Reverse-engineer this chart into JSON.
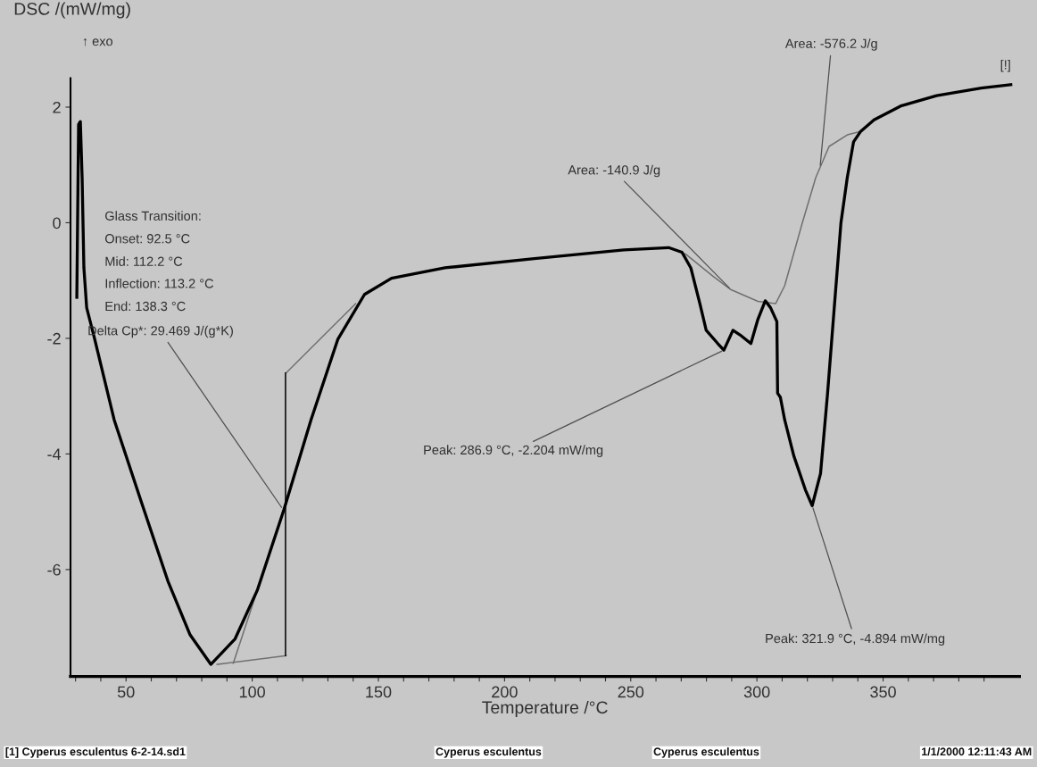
{
  "chart_data": {
    "type": "line",
    "xlabel": "Temperature /°C",
    "ylabel": "DSC /(mW/mg)",
    "xlim": [
      28,
      404
    ],
    "ylim": [
      -7.85,
      2.5
    ],
    "xticks": [
      {
        "value": 30,
        "label": null
      },
      {
        "value": 40,
        "label": null
      },
      50,
      {
        "value": 60,
        "label": null
      },
      {
        "value": 70,
        "label": null
      },
      {
        "value": 80,
        "label": null
      },
      {
        "value": 90,
        "label": null
      },
      100,
      {
        "value": 110,
        "label": null
      },
      {
        "value": 120,
        "label": null
      },
      {
        "value": 130,
        "label": null
      },
      {
        "value": 140,
        "label": null
      },
      150,
      {
        "value": 160,
        "label": null
      },
      {
        "value": 170,
        "label": null
      },
      {
        "value": 180,
        "label": null
      },
      {
        "value": 190,
        "label": null
      },
      200,
      {
        "value": 210,
        "label": null
      },
      {
        "value": 220,
        "label": null
      },
      {
        "value": 230,
        "label": null
      },
      {
        "value": 240,
        "label": null
      },
      250,
      {
        "value": 260,
        "label": null
      },
      {
        "value": 270,
        "label": null
      },
      {
        "value": 280,
        "label": null
      },
      {
        "value": 290,
        "label": null
      },
      300,
      {
        "value": 310,
        "label": null
      },
      {
        "value": 320,
        "label": null
      },
      {
        "value": 330,
        "label": null
      },
      {
        "value": 340,
        "label": null
      },
      350,
      {
        "value": 360,
        "label": null
      },
      {
        "value": 370,
        "label": null
      },
      {
        "value": 380,
        "label": null
      },
      {
        "value": 390,
        "label": null
      }
    ],
    "yticks": [
      -6,
      -4,
      -2,
      0,
      2
    ],
    "grid": false,
    "marker": "none",
    "line_style": "solid",
    "series": [
      {
        "color": "#000000",
        "x": [
          30.5,
          31.2,
          31.9,
          32.6,
          33.3,
          34.4,
          37.5,
          45.3,
          55.9,
          66.6,
          75.4,
          83.6,
          93.2,
          102,
          112.6,
          123.3,
          133.9,
          144.5,
          155.2,
          176.4,
          211.8,
          247.3,
          265,
          270.3,
          273.8,
          277.4,
          279.9,
          284.5,
          286.9,
          290.5,
          293.3,
          297.6,
          300.4,
          303.3,
          305.4,
          307.9,
          308.2,
          309.3,
          311,
          314.6,
          319.2,
          321.9,
          325.2,
          328,
          330.5,
          333.3,
          335.8,
          338.3,
          341.1,
          346.4,
          357,
          371.2,
          388.9,
          400.6
        ],
        "values": [
          -1.29,
          1.7,
          1.75,
          0.78,
          -0.78,
          -1.47,
          -2.0,
          -3.41,
          -4.81,
          -6.2,
          -7.13,
          -7.64,
          -7.2,
          -6.36,
          -4.96,
          -3.41,
          -2.02,
          -1.24,
          -0.96,
          -0.78,
          -0.62,
          -0.47,
          -0.43,
          -0.51,
          -0.78,
          -1.4,
          -1.86,
          -2.09,
          -2.204,
          -1.86,
          -1.94,
          -2.09,
          -1.67,
          -1.35,
          -1.47,
          -1.71,
          -2.95,
          -3.02,
          -3.41,
          -4.03,
          -4.62,
          -4.894,
          -4.34,
          -2.95,
          -1.55,
          0,
          0.78,
          1.4,
          1.58,
          1.78,
          2.02,
          2.2,
          2.33,
          2.39
        ]
      },
      {
        "color": "#707070",
        "x": [
          265,
          272,
          282.7,
          289.8,
          300.4,
          307.4,
          311,
          318,
          323.3,
          328.6,
          335.8,
          341.1
        ],
        "values": [
          -0.43,
          -0.55,
          -0.93,
          -1.16,
          -1.36,
          -1.4,
          -1.09,
          0,
          0.78,
          1.32,
          1.52,
          1.58
        ]
      },
      {
        "color": "#707070",
        "x": [
          113.4,
          141
        ],
        "values": [
          -2.6,
          -1.4
        ]
      },
      {
        "color": "#707070",
        "x": [
          86.1,
          113.4
        ],
        "values": [
          -7.64,
          -7.49
        ]
      },
      {
        "color": "#707070",
        "x": [
          92.5,
          104
        ],
        "values": [
          -7.62,
          -6.1
        ]
      },
      {
        "color": "#000000",
        "x": [
          113.2,
          113.2
        ],
        "values": [
          -7.49,
          -2.6
        ]
      }
    ],
    "annotations": [
      "↑ exo",
      "Glass Transition:",
      "Onset: 92.5 °C",
      "Mid: 112.2 °C",
      "Inflection: 113.2 °C",
      "End: 138.3 °C",
      {
        "text": "Delta Cp*: 29.469 J/(g*K)",
        "x": 112.2,
        "y": -4.96
      },
      {
        "text": "Area: -140.9 J/g",
        "x": 289.8,
        "y": -1.16
      },
      {
        "text": "Area: -576.2 J/g",
        "x": 325,
        "y": 0.95
      },
      {
        "text": "Peak: 286.9 °C, -2.204 mW/mg",
        "x": 286.9,
        "y": -2.204
      },
      {
        "text": "Peak: 321.9 °C, -4.894 mW/mg",
        "x": 321.9,
        "y": -4.894
      },
      {
        "text": "[!]",
        "x": 400.6,
        "y": 2.39
      },
      "[1] Cyperus esculentus 6-2-14.sd1",
      "Cyperus esculentus",
      "Cyperus esculentus",
      "1/1/2000 12:11:43 AM"
    ]
  }
}
